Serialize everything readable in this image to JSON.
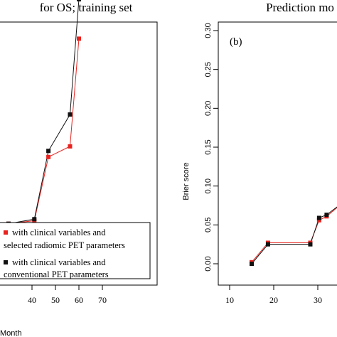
{
  "chart_data": [
    {
      "type": "line",
      "title": "for OS; training set",
      "xlabel": "Month",
      "ylabel": "",
      "xlim": [
        10,
        73
      ],
      "ylim": [
        0,
        0.3
      ],
      "xticks": [
        "40",
        "50",
        "60",
        "70"
      ],
      "grid": false,
      "legend": {
        "placement": "bottom-right",
        "entries": [
          {
            "series": 0,
            "line1": "with clinical variables and",
            "line2": "selected radiomic PET parameters"
          },
          {
            "series": 1,
            "line1": "with clinical variables and",
            "line2": "conventional PET parameters"
          }
        ]
      },
      "series": [
        {
          "color": "#e8231f",
          "x": [
            30,
            41,
            47,
            56.2,
            60
          ],
          "y": [
            0.04,
            0.042,
            0.084,
            0.091,
            0.162
          ]
        },
        {
          "color": "#111111",
          "x": [
            30,
            41,
            47,
            56.2,
            60
          ],
          "y": [
            0.04,
            0.043,
            0.088,
            0.112,
            0.188
          ]
        }
      ]
    },
    {
      "type": "line",
      "title": "Prediction mo",
      "panel_label": "(b)",
      "xlabel": "",
      "ylabel": "Brier score",
      "xlim": [
        7,
        43
      ],
      "ylim": [
        -0.01,
        0.31
      ],
      "xticks": [
        "10",
        "20",
        "30"
      ],
      "yticks": [
        "0.00",
        "0.05",
        "0.10",
        "0.15",
        "0.20",
        "0.25",
        "0.30"
      ],
      "grid": false,
      "series": [
        {
          "color": "#e8231f",
          "x": [
            15,
            18.7,
            28.3,
            30.3,
            32,
            36
          ],
          "y": [
            0.002,
            0.027,
            0.027,
            0.056,
            0.061,
            0.08
          ]
        },
        {
          "color": "#111111",
          "x": [
            15,
            18.7,
            28.3,
            30.3,
            32,
            36
          ],
          "y": [
            0.0,
            0.025,
            0.025,
            0.059,
            0.063,
            0.08
          ]
        }
      ]
    }
  ]
}
